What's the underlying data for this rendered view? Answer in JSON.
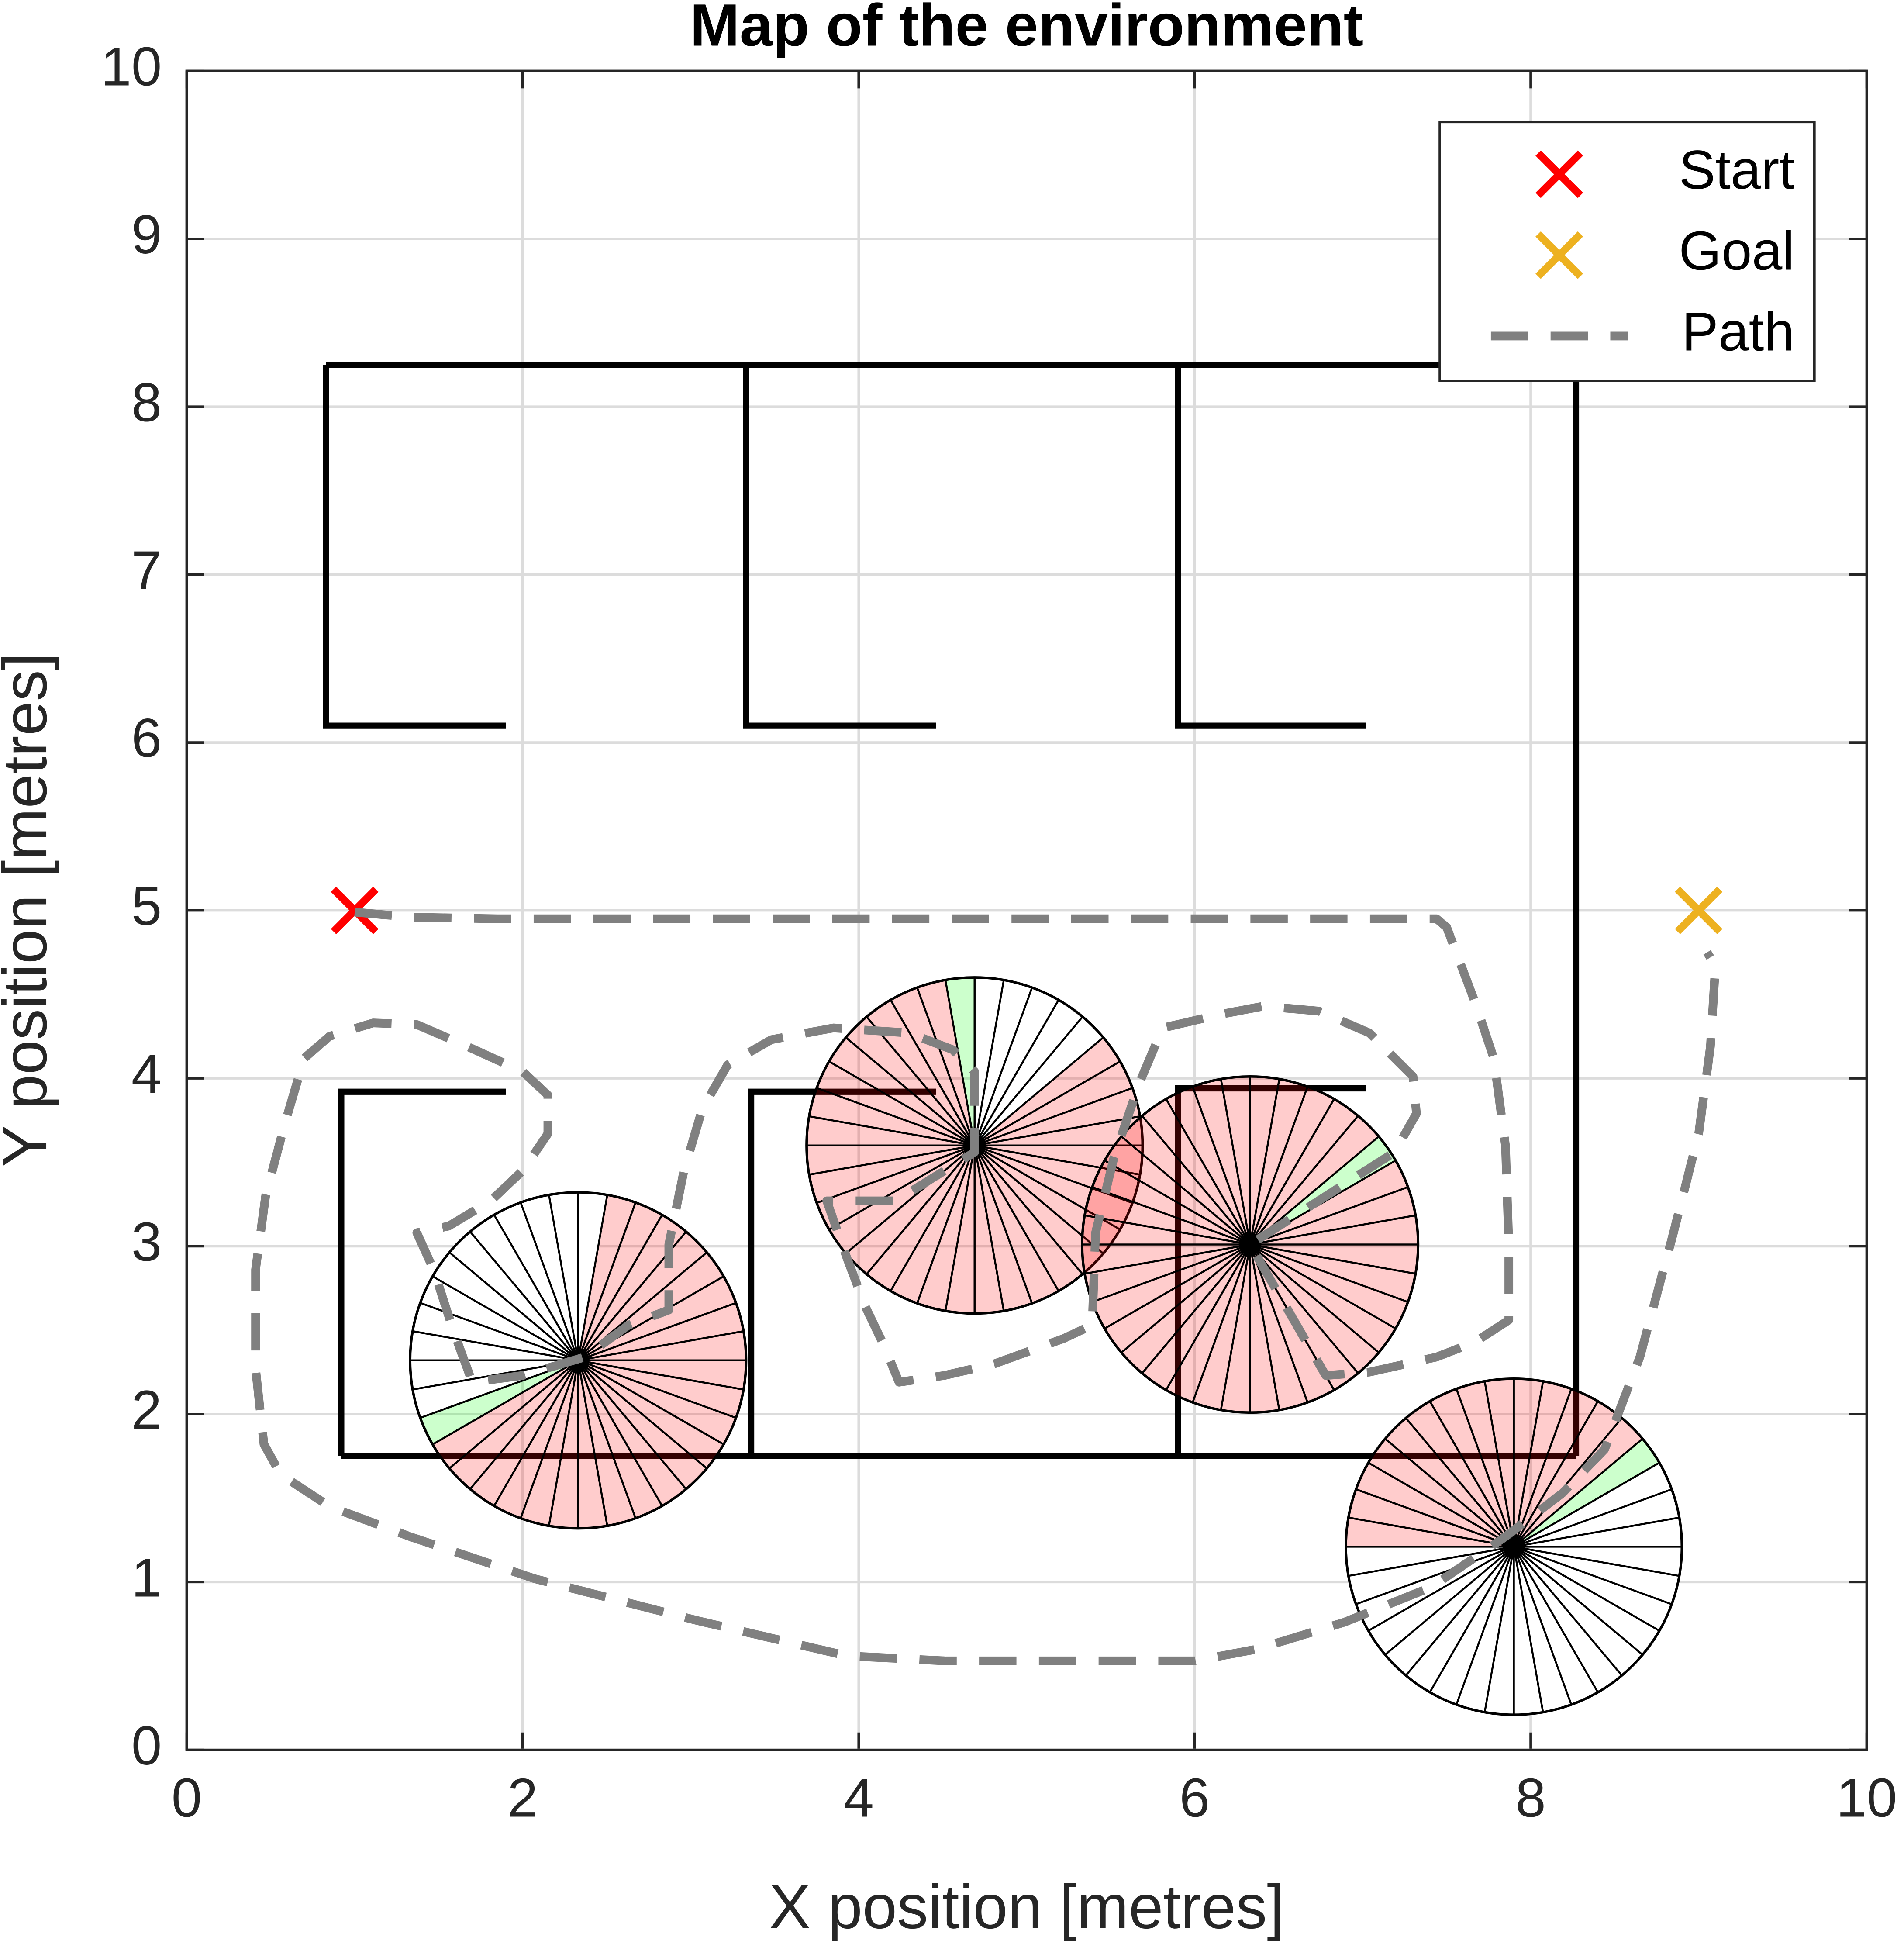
{
  "chart_data": {
    "type": "line",
    "title": "Map of the environment",
    "xlabel": "X position [metres]",
    "ylabel": "Y position [metres]",
    "xlim": [
      0,
      10
    ],
    "ylim": [
      0,
      10
    ],
    "xticks": [
      0,
      2,
      4,
      6,
      8,
      10
    ],
    "yticks": [
      0,
      1,
      2,
      3,
      4,
      5,
      6,
      7,
      8,
      9,
      10
    ],
    "grid": true,
    "legend": "upper right",
    "walls": {
      "color": "#000000",
      "segments": [
        {
          "x": [
            0.83,
            8.27
          ],
          "y": [
            8.25,
            8.25
          ]
        },
        {
          "x": [
            8.27,
            8.27
          ],
          "y": [
            8.25,
            1.75
          ]
        },
        {
          "x": [
            0.83,
            0.83,
            1.9
          ],
          "y": [
            8.25,
            6.1,
            6.1
          ]
        },
        {
          "x": [
            3.33,
            3.33,
            4.46
          ],
          "y": [
            8.25,
            6.1,
            6.1
          ]
        },
        {
          "x": [
            5.9,
            5.9,
            7.02
          ],
          "y": [
            8.25,
            6.1,
            6.1
          ]
        },
        {
          "x": [
            1.9,
            0.92,
            0.92
          ],
          "y": [
            3.92,
            3.92,
            1.75
          ]
        },
        {
          "x": [
            0.92,
            8.27
          ],
          "y": [
            1.75,
            1.75
          ]
        },
        {
          "x": [
            4.46,
            3.36,
            3.36
          ],
          "y": [
            3.92,
            3.92,
            1.75
          ]
        },
        {
          "x": [
            7.02,
            5.9,
            5.9
          ],
          "y": [
            3.94,
            3.94,
            1.75
          ]
        }
      ]
    },
    "sensor_colors": {
      "blocked": "#ff0000",
      "chosen": "#00ff00",
      "free": "#ffffff"
    },
    "sensors": [
      {
        "center": [
          2.33,
          2.32
        ],
        "radius": 1,
        "sectors": 36,
        "blocked": [
          21,
          7
        ],
        "chosen": 20
      },
      {
        "center": [
          4.69,
          3.6
        ],
        "radius": 1,
        "sectors": 36,
        "blocked": [
          10,
          3
        ],
        "chosen": 9
      },
      {
        "center": [
          6.33,
          3.01
        ],
        "radius": 1,
        "sectors": 36,
        "blocked": [
          4,
          2
        ],
        "chosen": 3
      },
      {
        "center": [
          7.9,
          1.21
        ],
        "radius": 1,
        "sectors": 36,
        "blocked": [
          4,
          17
        ],
        "chosen": 3
      }
    ],
    "series": [
      {
        "name": "Start",
        "color": "#ff0000",
        "marker": "x",
        "x": [
          1
        ],
        "y": [
          5
        ]
      },
      {
        "name": "Goal",
        "color": "#edb120",
        "marker": "x",
        "x": [
          9
        ],
        "y": [
          5
        ]
      },
      {
        "name": "Path",
        "color": "#808080",
        "marker": "dash",
        "x": [
          1.0,
          1.33,
          1.85,
          7.44,
          7.5,
          7.67,
          7.78,
          7.85,
          7.87,
          7.87,
          7.67,
          7.44,
          7.04,
          6.78,
          6.59,
          6.33,
          7.19,
          7.32,
          7.3,
          7.04,
          6.74,
          6.41,
          6.15,
          5.81,
          5.67,
          5.52,
          5.41,
          5.39,
          5.22,
          4.81,
          4.51,
          4.24,
          4.15,
          4.04,
          3.93,
          3.81,
          4.22,
          4.69,
          4.69,
          4.56,
          4.3,
          3.85,
          3.48,
          3.22,
          3.07,
          2.96,
          2.87,
          2.87,
          2.63,
          2.37,
          2.0,
          1.7,
          1.59,
          1.47,
          1.37,
          1.56,
          1.81,
          2.0,
          2.15,
          2.15,
          2.0,
          1.67,
          1.37,
          1.11,
          0.85,
          0.7,
          0.59,
          0.47,
          0.41,
          0.41,
          0.46,
          0.56,
          0.85,
          1.33,
          2.07,
          3.04,
          3.93,
          4.52,
          6.0,
          6.37,
          6.89,
          7.41,
          7.85,
          8.19,
          8.44,
          8.65,
          8.85,
          9.0,
          9.07,
          9.1,
          9.05
        ],
        "y": [
          4.99,
          4.96,
          4.95,
          4.95,
          4.9,
          4.45,
          4.12,
          3.6,
          3.01,
          2.56,
          2.43,
          2.34,
          2.25,
          2.23,
          2.56,
          3.01,
          3.56,
          3.79,
          4.01,
          4.27,
          4.4,
          4.43,
          4.38,
          4.3,
          3.97,
          3.53,
          3.08,
          2.53,
          2.45,
          2.3,
          2.23,
          2.19,
          2.41,
          2.64,
          2.93,
          3.27,
          3.27,
          3.56,
          4.04,
          4.17,
          4.27,
          4.3,
          4.23,
          4.08,
          3.82,
          3.45,
          3.01,
          2.62,
          2.53,
          2.34,
          2.23,
          2.19,
          2.49,
          2.86,
          3.08,
          3.12,
          3.27,
          3.45,
          3.67,
          3.9,
          4.04,
          4.19,
          4.32,
          4.33,
          4.25,
          4.12,
          3.75,
          3.3,
          2.86,
          2.27,
          1.82,
          1.64,
          1.45,
          1.27,
          1.02,
          0.77,
          0.56,
          0.53,
          0.53,
          0.6,
          0.76,
          0.97,
          1.27,
          1.53,
          1.79,
          2.34,
          3.08,
          3.67,
          4.19,
          4.67,
          4.75
        ]
      }
    ]
  }
}
